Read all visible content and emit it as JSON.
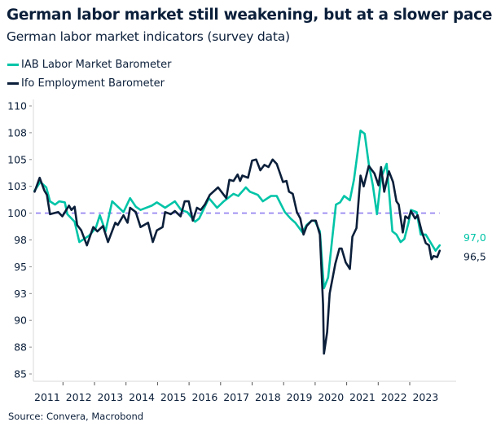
{
  "chart_data": {
    "type": "line",
    "title": "German labor market still weakening, but at a slower pace",
    "subtitle": "German labor market indicators (survey data)",
    "source": "Source: Convera, Macrobond",
    "xlim": [
      2011,
      2024
    ],
    "ylim": [
      85,
      110
    ],
    "x_ticks": [
      "2011",
      "2012",
      "2013",
      "2014",
      "2015",
      "2016",
      "2017",
      "2018",
      "2019",
      "2020",
      "2021",
      "2022",
      "2023"
    ],
    "y_ticks": [
      {
        "value": 110,
        "label": "110"
      },
      {
        "value": 107.5,
        "label": "108"
      },
      {
        "value": 105,
        "label": "105"
      },
      {
        "value": 102.5,
        "label": "103"
      },
      {
        "value": 100,
        "label": "100"
      },
      {
        "value": 97.5,
        "label": "98"
      },
      {
        "value": 95,
        "label": "95"
      },
      {
        "value": 92.5,
        "label": "93"
      },
      {
        "value": 90,
        "label": "90"
      },
      {
        "value": 87.5,
        "label": "88"
      },
      {
        "value": 85,
        "label": "85"
      }
    ],
    "reference_line": {
      "value": 100,
      "style": "dashed",
      "color": "#8f7ff0"
    },
    "grid": false,
    "legend_position": "top-left",
    "series": [
      {
        "name": "IAB Labor Market Barometer",
        "color": "#00c4a7",
        "end_label": "97,0",
        "x": [
          2011.1,
          2011.28,
          2011.47,
          2011.59,
          2011.75,
          2011.88,
          2012.06,
          2012.14,
          2012.37,
          2012.52,
          2012.83,
          2013.04,
          2013.17,
          2013.35,
          2013.56,
          2013.92,
          2014.13,
          2014.31,
          2014.46,
          2014.82,
          2014.98,
          2015.24,
          2015.55,
          2015.75,
          2015.94,
          2016.19,
          2016.32,
          2016.63,
          2016.89,
          2017.1,
          2017.41,
          2017.56,
          2017.8,
          2017.93,
          2018.18,
          2018.34,
          2018.6,
          2018.78,
          2019.04,
          2019.22,
          2019.37,
          2019.6,
          2019.73,
          2019.89,
          2019.99,
          2020.15,
          2020.28,
          2020.41,
          2020.53,
          2020.66,
          2020.79,
          2020.92,
          2021.1,
          2021.23,
          2021.44,
          2021.57,
          2021.7,
          2021.83,
          2021.96,
          2022.09,
          2022.27,
          2022.45,
          2022.58,
          2022.71,
          2022.83,
          2022.96,
          2023.04,
          2023.22,
          2023.35,
          2023.51,
          2023.82,
          2023.95
        ],
        "values": [
          102.1,
          102.9,
          102.4,
          101.1,
          100.8,
          101.1,
          101.0,
          99.9,
          99.2,
          97.3,
          97.9,
          98.6,
          99.8,
          98.3,
          101.1,
          100.1,
          101.4,
          100.6,
          100.3,
          100.7,
          101.0,
          100.5,
          101.1,
          100.3,
          100.1,
          99.2,
          99.5,
          101.4,
          100.5,
          101.1,
          101.8,
          101.6,
          102.4,
          102.0,
          101.7,
          101.1,
          101.6,
          101.6,
          100.1,
          99.5,
          99.1,
          98.2,
          98.9,
          99.3,
          99.3,
          98.3,
          93.0,
          94.0,
          97.3,
          100.8,
          101.0,
          101.6,
          101.2,
          103.1,
          107.7,
          107.4,
          104.6,
          102.6,
          99.9,
          103.3,
          104.6,
          98.3,
          98.0,
          97.3,
          97.6,
          99.1,
          100.3,
          100.1,
          98.0,
          98.0,
          96.5,
          97.0
        ]
      },
      {
        "name": "Ifo Employment Barometer",
        "color": "#0b1f3a",
        "end_label": "96,5",
        "x": [
          2011.1,
          2011.26,
          2011.41,
          2011.49,
          2011.59,
          2011.85,
          2011.98,
          2012.19,
          2012.27,
          2012.37,
          2012.45,
          2012.58,
          2012.76,
          2012.96,
          2013.09,
          2013.27,
          2013.43,
          2013.66,
          2013.74,
          2013.92,
          2014.05,
          2014.13,
          2014.31,
          2014.46,
          2014.7,
          2014.85,
          2014.98,
          2015.16,
          2015.24,
          2015.42,
          2015.55,
          2015.73,
          2015.86,
          2015.99,
          2016.12,
          2016.25,
          2016.37,
          2016.5,
          2016.66,
          2016.92,
          2017.18,
          2017.28,
          2017.41,
          2017.54,
          2017.62,
          2017.69,
          2017.87,
          2018.0,
          2018.13,
          2018.26,
          2018.39,
          2018.52,
          2018.65,
          2018.78,
          2018.91,
          2018.98,
          2019.09,
          2019.17,
          2019.29,
          2019.42,
          2019.53,
          2019.63,
          2019.73,
          2019.89,
          2020.02,
          2020.15,
          2020.25,
          2020.28,
          2020.38,
          2020.46,
          2020.64,
          2020.77,
          2020.84,
          2020.97,
          2021.1,
          2021.18,
          2021.31,
          2021.44,
          2021.54,
          2021.7,
          2021.88,
          2022.01,
          2022.09,
          2022.19,
          2022.27,
          2022.34,
          2022.47,
          2022.58,
          2022.65,
          2022.78,
          2022.86,
          2022.96,
          2023.04,
          2023.17,
          2023.25,
          2023.38,
          2023.51,
          2023.61,
          2023.69,
          2023.76,
          2023.87,
          2023.95
        ],
        "values": [
          102.0,
          103.3,
          102.1,
          101.7,
          99.9,
          100.1,
          99.7,
          100.7,
          100.3,
          100.6,
          98.9,
          98.4,
          97.0,
          98.7,
          98.3,
          98.8,
          97.3,
          99.1,
          98.9,
          99.8,
          99.1,
          100.5,
          100.1,
          98.7,
          99.1,
          97.3,
          98.4,
          98.7,
          100.1,
          99.9,
          100.2,
          99.7,
          101.1,
          101.1,
          99.3,
          100.5,
          100.3,
          100.8,
          101.7,
          102.4,
          101.4,
          103.1,
          103.0,
          103.6,
          103.0,
          103.5,
          103.3,
          104.9,
          105.0,
          104.0,
          104.5,
          104.3,
          105.0,
          104.6,
          103.5,
          102.9,
          103.0,
          102.0,
          101.8,
          100.1,
          99.5,
          98.0,
          98.8,
          99.3,
          99.3,
          98.0,
          91.5,
          86.9,
          88.9,
          92.5,
          95.3,
          96.7,
          96.7,
          95.4,
          94.8,
          97.8,
          98.6,
          103.5,
          102.5,
          104.4,
          103.7,
          102.6,
          104.3,
          102.0,
          103.0,
          103.9,
          102.9,
          101.1,
          100.8,
          98.2,
          99.7,
          99.5,
          100.2,
          99.5,
          99.8,
          98.3,
          97.2,
          97.0,
          95.7,
          96.0,
          95.9,
          96.5
        ]
      }
    ]
  }
}
